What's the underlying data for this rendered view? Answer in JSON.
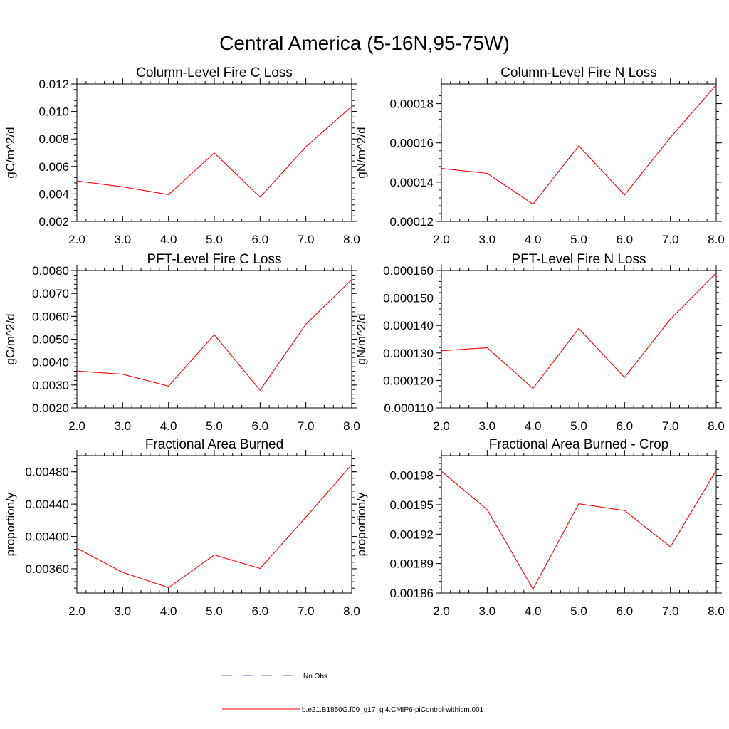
{
  "title": "Central America (5-16N,95-75W)",
  "colors": {
    "model": "#ff0000",
    "obs": "#6666cc",
    "axis": "#000000"
  },
  "legend": {
    "obs_label": "No Obs",
    "model_label": "b.e21.B1850G.f09_g17_gl4.CMIP6-piControl-withism.001"
  },
  "chart_data": [
    {
      "type": "line",
      "title": "Column-Level Fire C Loss",
      "ylabel": "gC/m^2/d",
      "x": [
        2,
        3,
        4,
        5,
        6,
        7,
        8
      ],
      "values": [
        0.00495,
        0.00452,
        0.00395,
        0.00698,
        0.00376,
        0.00744,
        0.01037
      ],
      "xlim": [
        2,
        8
      ],
      "ylim": [
        0.002,
        0.012
      ],
      "xticks": [
        "2.0",
        "3.0",
        "4.0",
        "5.0",
        "6.0",
        "7.0",
        "8.0"
      ],
      "yticks": [
        {
          "v": 0.002,
          "label": "0.002"
        },
        {
          "v": 0.004,
          "label": "0.004"
        },
        {
          "v": 0.006,
          "label": "0.006"
        },
        {
          "v": 0.008,
          "label": "0.008"
        },
        {
          "v": 0.01,
          "label": "0.010"
        },
        {
          "v": 0.012,
          "label": "0.012"
        }
      ]
    },
    {
      "type": "line",
      "title": "Column-Level Fire N Loss",
      "ylabel": "gN/m^2/d",
      "x": [
        2,
        3,
        4,
        5,
        6,
        7,
        8
      ],
      "values": [
        0.000147,
        0.0001445,
        0.0001288,
        0.0001585,
        0.0001335,
        0.0001628,
        0.0001895
      ],
      "xlim": [
        2,
        8
      ],
      "ylim": [
        0.00012,
        0.00019
      ],
      "xticks": [
        "2.0",
        "3.0",
        "4.0",
        "5.0",
        "6.0",
        "7.0",
        "8.0"
      ],
      "yticks": [
        {
          "v": 0.00012,
          "label": "0.00012"
        },
        {
          "v": 0.00014,
          "label": "0.00014"
        },
        {
          "v": 0.00016,
          "label": "0.00016"
        },
        {
          "v": 0.00018,
          "label": "0.00018"
        }
      ]
    },
    {
      "type": "line",
      "title": "PFT-Level Fire C Loss",
      "ylabel": "gC/m^2/d",
      "x": [
        2,
        3,
        4,
        5,
        6,
        7,
        8
      ],
      "values": [
        0.00361,
        0.00347,
        0.00295,
        0.0052,
        0.00277,
        0.00566,
        0.0076
      ],
      "xlim": [
        2,
        8
      ],
      "ylim": [
        0.002,
        0.008
      ],
      "xticks": [
        "2.0",
        "3.0",
        "4.0",
        "5.0",
        "6.0",
        "7.0",
        "8.0"
      ],
      "yticks": [
        {
          "v": 0.002,
          "label": "0.0020"
        },
        {
          "v": 0.003,
          "label": "0.0030"
        },
        {
          "v": 0.004,
          "label": "0.0040"
        },
        {
          "v": 0.005,
          "label": "0.0050"
        },
        {
          "v": 0.006,
          "label": "0.0060"
        },
        {
          "v": 0.007,
          "label": "0.0070"
        },
        {
          "v": 0.008,
          "label": "0.0080"
        }
      ]
    },
    {
      "type": "line",
      "title": "PFT-Level Fire N Loss",
      "ylabel": "gN/m^2/d",
      "x": [
        2,
        3,
        4,
        5,
        6,
        7,
        8
      ],
      "values": [
        0.0001308,
        0.0001319,
        0.0001171,
        0.0001389,
        0.0001211,
        0.0001423,
        0.0001591
      ],
      "xlim": [
        2,
        8
      ],
      "ylim": [
        0.00011,
        0.00016
      ],
      "xticks": [
        "2.0",
        "3.0",
        "4.0",
        "5.0",
        "6.0",
        "7.0",
        "8.0"
      ],
      "yticks": [
        {
          "v": 0.00011,
          "label": "0.000110"
        },
        {
          "v": 0.00012,
          "label": "0.000120"
        },
        {
          "v": 0.00013,
          "label": "0.000130"
        },
        {
          "v": 0.00014,
          "label": "0.000140"
        },
        {
          "v": 0.00015,
          "label": "0.000150"
        },
        {
          "v": 0.00016,
          "label": "0.000160"
        }
      ]
    },
    {
      "type": "line",
      "title": "Fractional Area Burned",
      "ylabel": "proportion/y",
      "x": [
        2,
        3,
        4,
        5,
        6,
        7,
        8
      ],
      "values": [
        0.003854,
        0.003555,
        0.003367,
        0.003771,
        0.003604,
        0.004239,
        0.004889
      ],
      "xlim": [
        2,
        8
      ],
      "ylim": [
        0.0033,
        0.005
      ],
      "xticks": [
        "2.0",
        "3.0",
        "4.0",
        "5.0",
        "6.0",
        "7.0",
        "8.0"
      ],
      "yticks": [
        {
          "v": 0.0036,
          "label": "0.00360"
        },
        {
          "v": 0.004,
          "label": "0.00400"
        },
        {
          "v": 0.0044,
          "label": "0.00440"
        },
        {
          "v": 0.0048,
          "label": "0.00480"
        }
      ]
    },
    {
      "type": "line",
      "title": "Fractional Area Burned - Crop",
      "ylabel": "proportion/y",
      "x": [
        2,
        3,
        4,
        5,
        6,
        7,
        8
      ],
      "values": [
        0.001984,
        0.001945,
        0.001864,
        0.001951,
        0.001944,
        0.001907,
        0.001985
      ],
      "xlim": [
        2,
        8
      ],
      "ylim": [
        0.00186,
        0.002
      ],
      "xticks": [
        "2.0",
        "3.0",
        "4.0",
        "5.0",
        "6.0",
        "7.0",
        "8.0"
      ],
      "yticks": [
        {
          "v": 0.00186,
          "label": "0.00186"
        },
        {
          "v": 0.00189,
          "label": "0.00189"
        },
        {
          "v": 0.00192,
          "label": "0.00192"
        },
        {
          "v": 0.00195,
          "label": "0.00195"
        },
        {
          "v": 0.00198,
          "label": "0.00198"
        }
      ]
    }
  ]
}
